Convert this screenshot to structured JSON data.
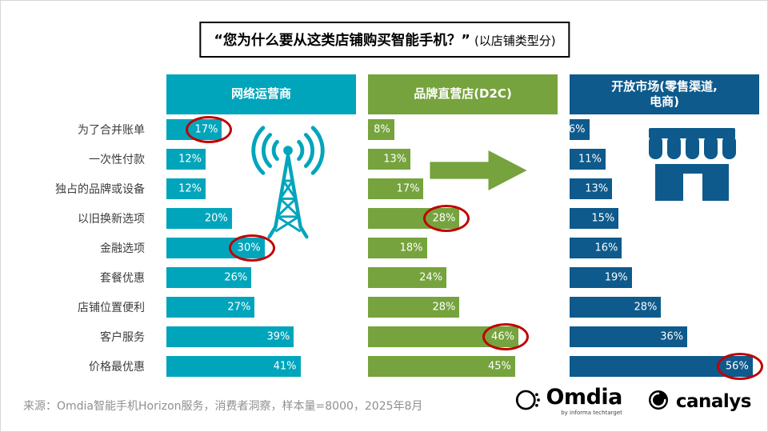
{
  "chart_data": {
    "type": "bar",
    "orientation": "horizontal",
    "title": "“您为什么要从这类店铺购买智能手机？”",
    "title_suffix": "(以店铺类型分)",
    "categories": [
      "为了合并账单",
      "一次性付款",
      "独占的品牌或设备",
      "以旧换新选项",
      "金融选项",
      "套餐优惠",
      "店铺位置便利",
      "客户服务",
      "价格最优惠"
    ],
    "series": [
      {
        "name": "网络运营商",
        "color": "#00a5bc",
        "values": [
          17,
          12,
          12,
          20,
          30,
          26,
          27,
          39,
          41
        ]
      },
      {
        "name": "品牌直营店(D2C)",
        "color": "#76a33d",
        "values": [
          8,
          13,
          17,
          28,
          18,
          24,
          28,
          46,
          45
        ]
      },
      {
        "name": "开放市场(零售渠道,\n电商)",
        "color": "#0e5a8c",
        "values": [
          6,
          11,
          13,
          15,
          16,
          19,
          28,
          36,
          56
        ]
      }
    ],
    "value_suffix": "%",
    "xlim": [
      0,
      58
    ],
    "grid": false,
    "legend_position": "column-headers",
    "highlights": [
      {
        "series": 0,
        "category": 0
      },
      {
        "series": 1,
        "category": 3
      },
      {
        "series": 0,
        "category": 4
      },
      {
        "series": 1,
        "category": 7
      },
      {
        "series": 2,
        "category": 8
      }
    ],
    "highlight_color": "#c00000"
  },
  "icons": {
    "tower": "radio-tower-icon",
    "arrow": "arrow-right-icon",
    "store": "storefront-icon",
    "omdia": "omdia-logo-icon",
    "canalys": "canalys-logo-icon"
  },
  "footer": {
    "source": "来源：Omdia智能手机Horizon服务，消费者洞察，样本量=8000，2025年8月"
  },
  "logos": {
    "omdia_text": "Omdia",
    "omdia_sub": "by informa techtarget",
    "canalys_text": "canalys"
  }
}
